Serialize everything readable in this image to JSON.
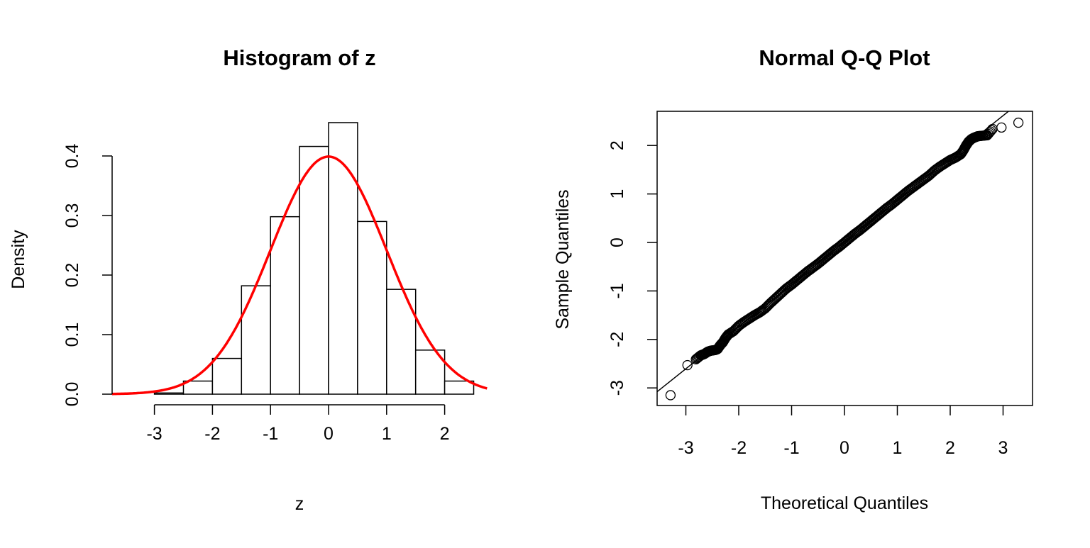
{
  "chart_data": [
    {
      "type": "bar",
      "title": "Histogram of z",
      "xlabel": "z",
      "ylabel": "Density",
      "bin_edges": [
        -3,
        -2.5,
        -2,
        -1.5,
        -1,
        -0.5,
        0,
        0.5,
        1,
        1.5,
        2,
        2.5
      ],
      "values": [
        0.002,
        0.022,
        0.06,
        0.182,
        0.298,
        0.416,
        0.456,
        0.29,
        0.176,
        0.074,
        0.022
      ],
      "xticks": [
        "-3",
        "-2",
        "-1",
        "0",
        "1",
        "2"
      ],
      "yticks": [
        "0.0",
        "0.1",
        "0.2",
        "0.3",
        "0.4"
      ],
      "xlim": [
        -3.73,
        2.73
      ],
      "ylim": [
        0,
        0.456
      ],
      "overlay": {
        "type": "line",
        "name": "normal density",
        "mean": 0,
        "sd": 1,
        "x_range": [
          -3.73,
          2.73
        ],
        "color": "#ff0000"
      },
      "grid": false
    },
    {
      "type": "scatter",
      "title": "Normal Q-Q Plot",
      "xlabel": "Theoretical Quantiles",
      "ylabel": "Sample Quantiles",
      "xticks": [
        "-3",
        "-2",
        "-1",
        "0",
        "1",
        "2",
        "3"
      ],
      "yticks": [
        "-3",
        "-2",
        "-1",
        "0",
        "1",
        "2"
      ],
      "xlim": [
        -3.55,
        3.55
      ],
      "ylim": [
        -3.32,
        2.71
      ],
      "reference_line": {
        "intercept": 0.005,
        "slope": 0.87
      },
      "theoretical": [
        -3.29,
        -2.97,
        -2.81,
        -2.72,
        -2.65,
        -2.58,
        -2.52,
        -2.45,
        -2.4,
        -2.35,
        -2.3,
        -2.25,
        -2.2,
        -2.1,
        -2.0,
        -1.9,
        -1.8,
        -1.7,
        -1.6,
        -1.5,
        -1.4,
        -1.3,
        -1.2,
        -1.1,
        -1.0,
        -0.9,
        -0.8,
        -0.7,
        -0.6,
        -0.5,
        -0.4,
        -0.3,
        -0.2,
        -0.1,
        0,
        0.1,
        0.2,
        0.3,
        0.4,
        0.5,
        0.6,
        0.7,
        0.8,
        0.9,
        1.0,
        1.1,
        1.2,
        1.3,
        1.4,
        1.5,
        1.6,
        1.7,
        1.8,
        1.9,
        2.0,
        2.1,
        2.2,
        2.25,
        2.3,
        2.35,
        2.4,
        2.45,
        2.52,
        2.6,
        2.7,
        2.8,
        2.97,
        3.29
      ],
      "sample": [
        -3.15,
        -2.53,
        -2.41,
        -2.33,
        -2.3,
        -2.25,
        -2.23,
        -2.22,
        -2.2,
        -2.12,
        -2.06,
        -1.97,
        -1.9,
        -1.83,
        -1.72,
        -1.64,
        -1.57,
        -1.5,
        -1.44,
        -1.36,
        -1.25,
        -1.15,
        -1.05,
        -0.95,
        -0.87,
        -0.78,
        -0.69,
        -0.6,
        -0.52,
        -0.44,
        -0.35,
        -0.26,
        -0.17,
        -0.09,
        0.0,
        0.09,
        0.18,
        0.26,
        0.35,
        0.44,
        0.53,
        0.62,
        0.71,
        0.79,
        0.88,
        0.97,
        1.06,
        1.14,
        1.22,
        1.3,
        1.38,
        1.48,
        1.56,
        1.63,
        1.7,
        1.75,
        1.82,
        1.9,
        2.0,
        2.08,
        2.13,
        2.16,
        2.19,
        2.2,
        2.21,
        2.34,
        2.37,
        2.47
      ],
      "grid": false
    }
  ]
}
